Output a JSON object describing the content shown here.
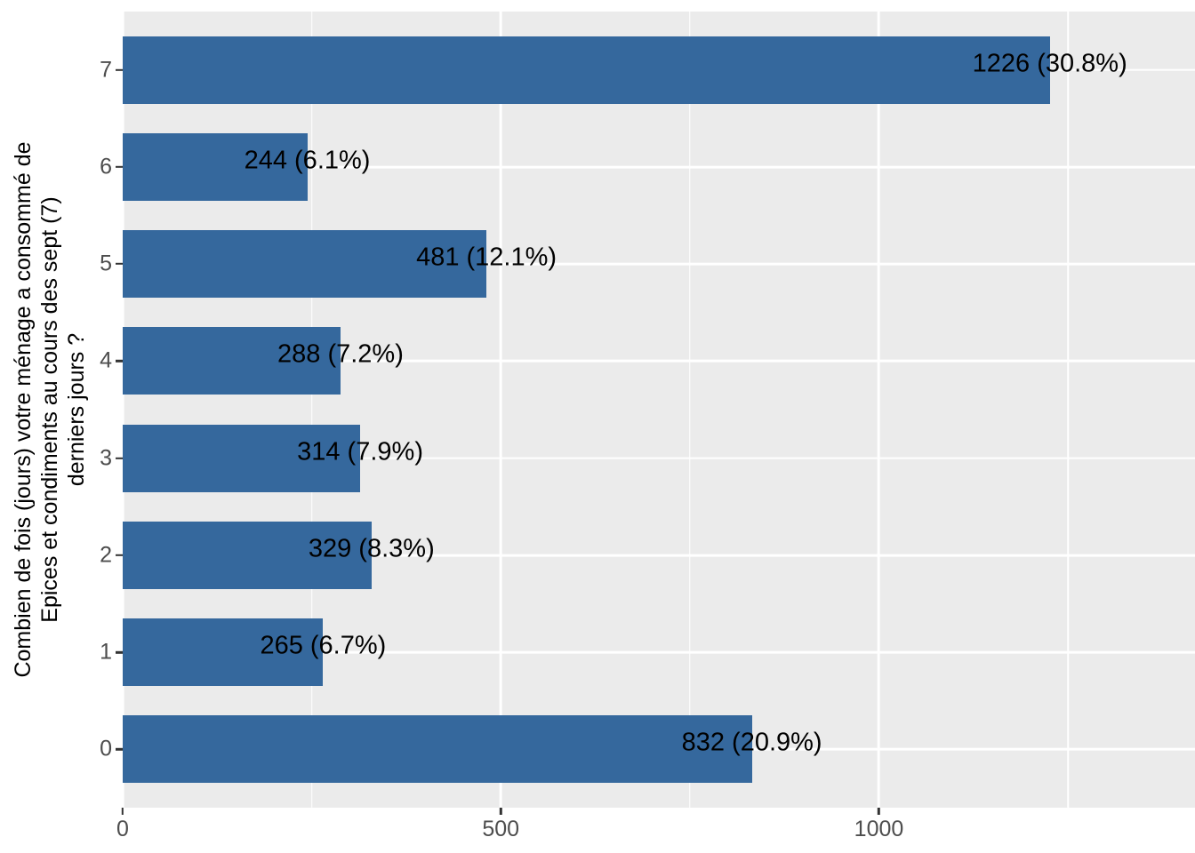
{
  "chart_data": {
    "type": "bar",
    "orientation": "horizontal",
    "title": "",
    "xlabel": "",
    "ylabel": "Combien de fois (jours) votre ménage a consommé de Epices et condiments au cours des sept (7) derniers jours ?",
    "ylabel_lines": [
      "Combien de fois (jours) votre ménage a consommé de",
      "Epices et condiments au cours des sept (7)",
      "derniers jours ?"
    ],
    "categories": [
      "7",
      "6",
      "5",
      "4",
      "3",
      "2",
      "1",
      "0"
    ],
    "values": [
      1226,
      244,
      481,
      288,
      314,
      329,
      265,
      832
    ],
    "percentages": [
      30.8,
      6.1,
      12.1,
      7.2,
      7.9,
      8.3,
      6.7,
      20.9
    ],
    "bar_labels": [
      "1226 (30.8%)",
      "244 (6.1%)",
      "481 (12.1%)",
      "288 (7.2%)",
      "314 (7.9%)",
      "329 (8.3%)",
      "265 (6.7%)",
      "832 (20.9%)"
    ],
    "x_axis": {
      "tick_values": [
        0,
        500,
        1000
      ],
      "tick_labels": [
        "0",
        "500",
        "1000"
      ],
      "minor_tick_values": [
        250,
        750,
        1250
      ],
      "range": [
        0,
        1418
      ]
    },
    "legend": "none",
    "grid": "on",
    "colors": {
      "bar_fill": "#35689D",
      "panel_background": "#EBEBEB",
      "gridline": "#FFFFFF",
      "axis_text": "#4D4D4D",
      "axis_title": "#000000",
      "bar_label_text": "#000000",
      "tick_mark": "#333333",
      "page_background": "#FFFFFF"
    }
  }
}
